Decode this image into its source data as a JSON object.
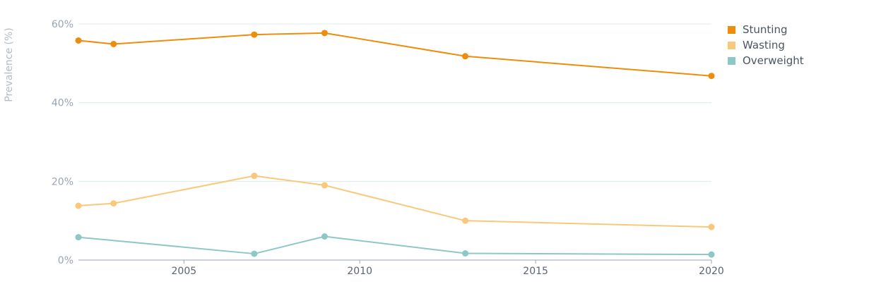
{
  "chart_data": {
    "type": "line",
    "ylabel": "Prevalence (%)",
    "ylim": [
      0,
      60
    ],
    "xlim": [
      2002,
      2020
    ],
    "y_ticks": [
      0,
      20,
      40,
      60
    ],
    "y_tick_labels": [
      "0%",
      "20%",
      "40%",
      "60%"
    ],
    "x_ticks": [
      2005,
      2010,
      2015,
      2020
    ],
    "x_tick_labels": [
      "2005",
      "2010",
      "2015",
      "2020"
    ],
    "grid": true,
    "legend_position": "top-right",
    "series": [
      {
        "name": "Stunting",
        "color": "#ee8c0b",
        "x": [
          2002,
          2003,
          2007,
          2009,
          2013,
          2020
        ],
        "values": [
          55.8,
          54.9,
          57.3,
          57.7,
          51.8,
          46.8
        ]
      },
      {
        "name": "Wasting",
        "color": "#f9c87a",
        "x": [
          2002,
          2003,
          2007,
          2009,
          2013,
          2020
        ],
        "values": [
          13.8,
          14.4,
          21.4,
          19.0,
          10.0,
          8.4
        ]
      },
      {
        "name": "Overweight",
        "color": "#8ec8c6",
        "x": [
          2002,
          2007,
          2009,
          2013,
          2020
        ],
        "values": [
          5.8,
          1.6,
          6.0,
          1.7,
          1.4
        ]
      }
    ]
  }
}
